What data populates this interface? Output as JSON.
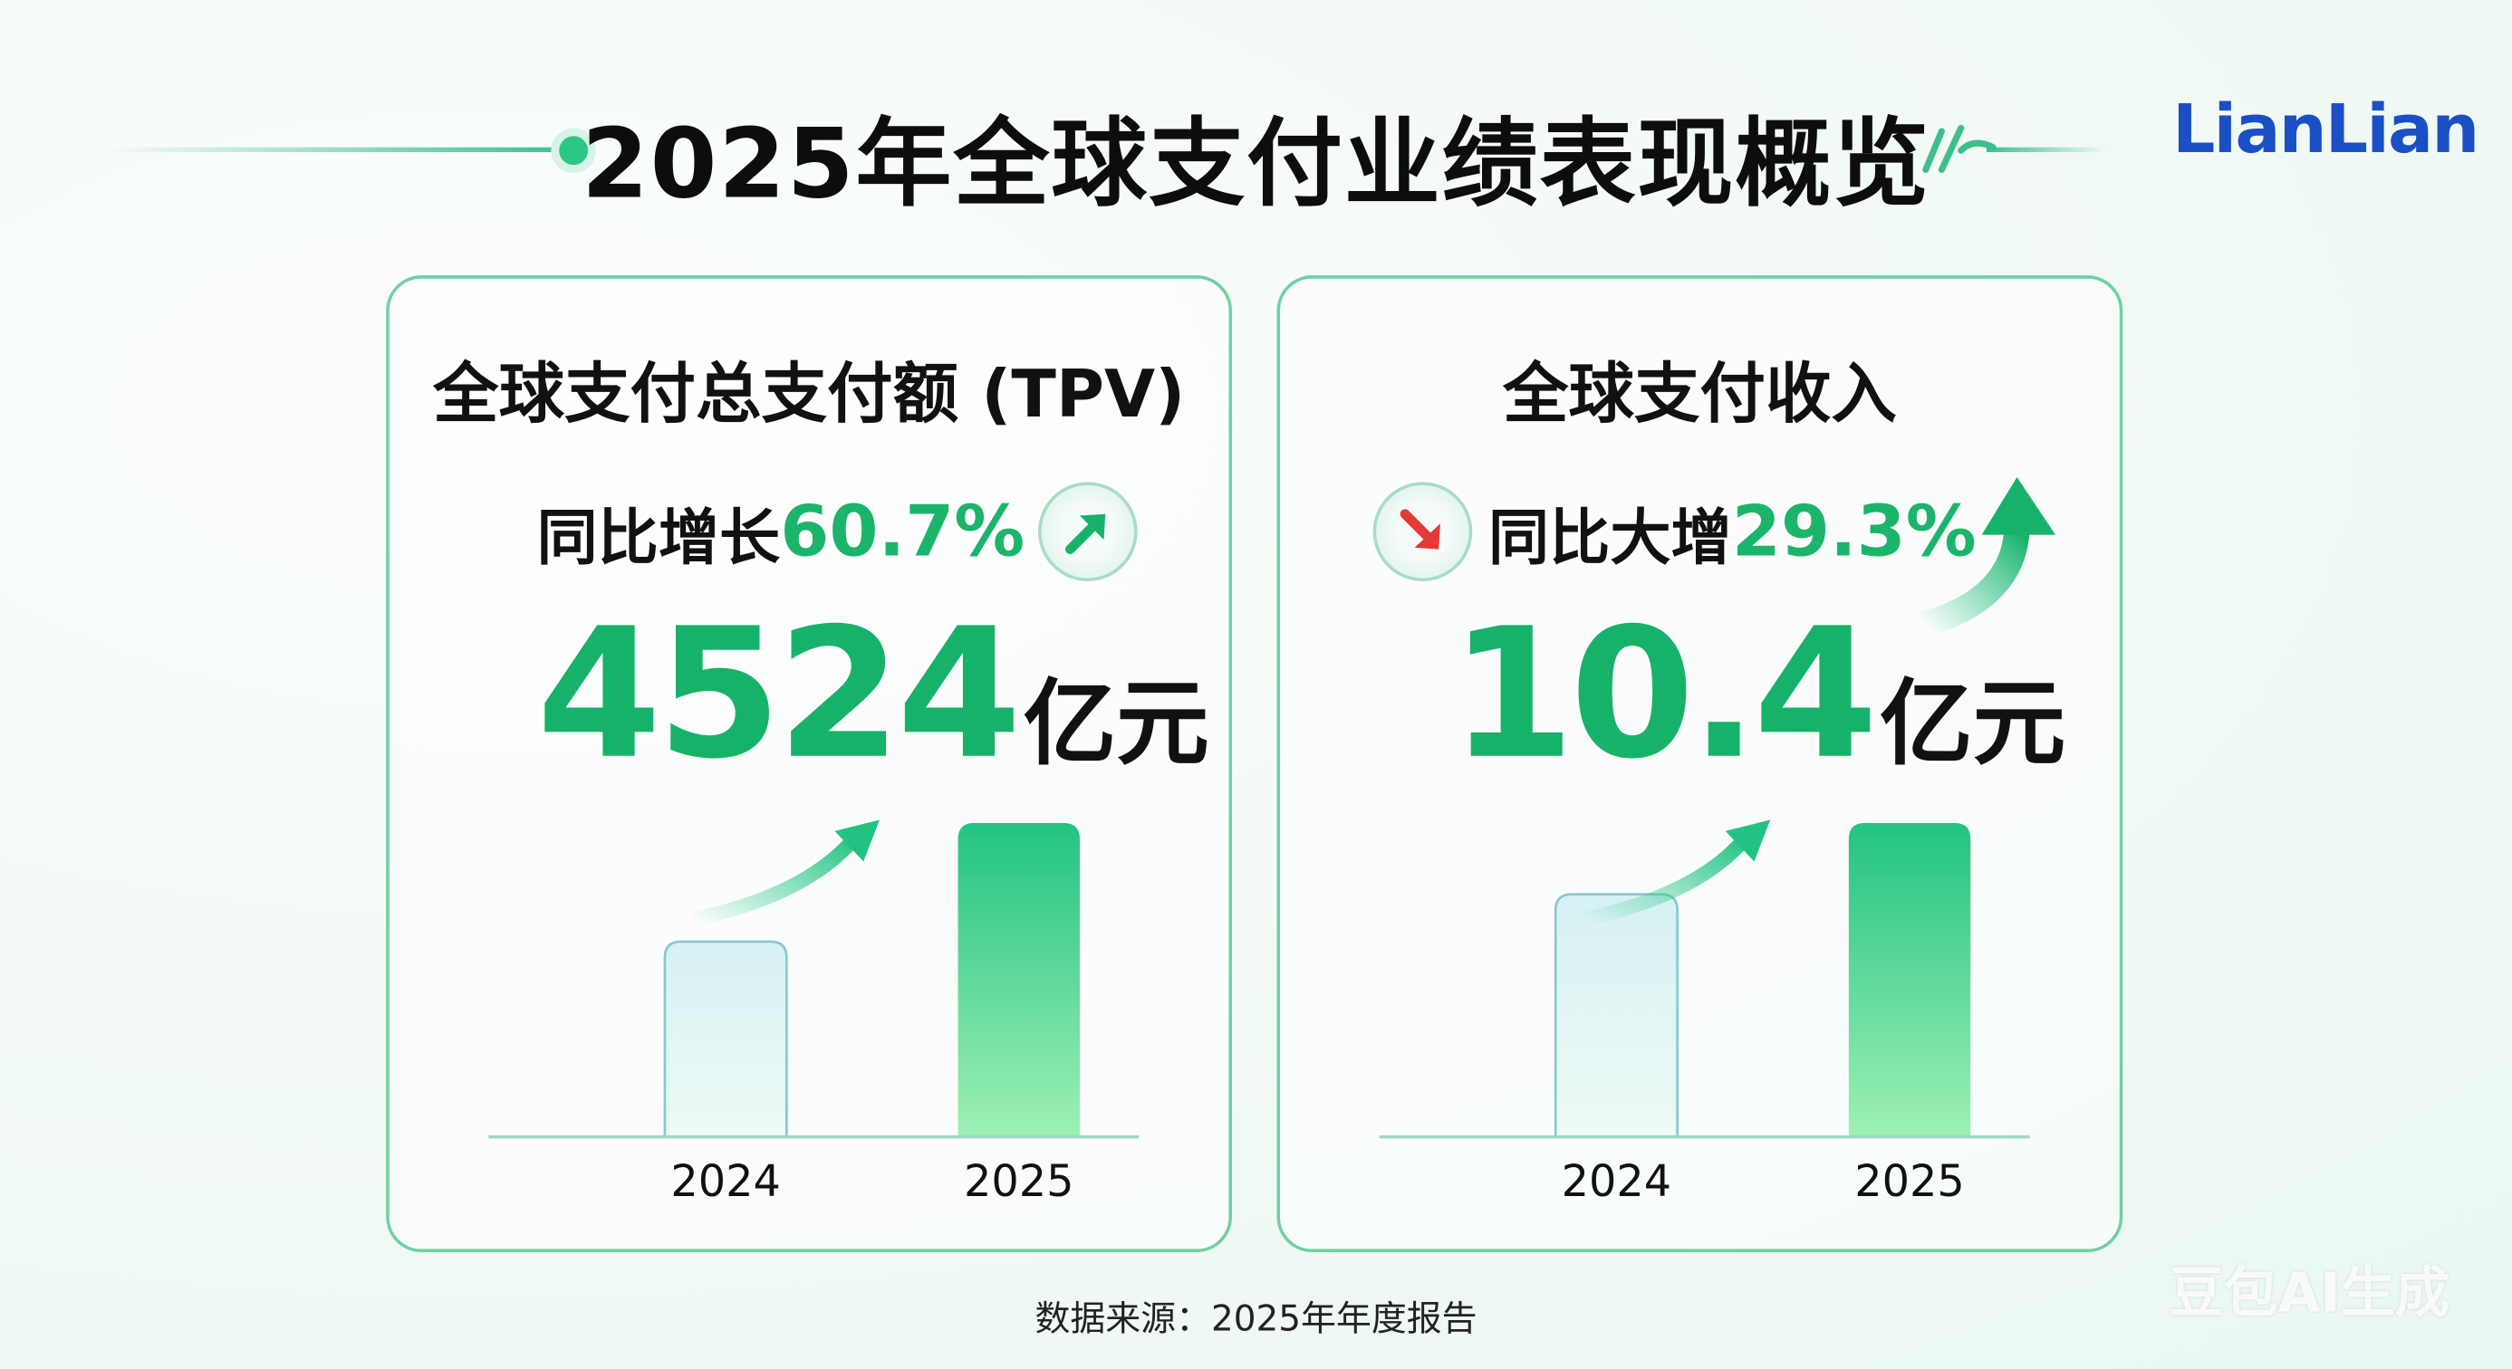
{
  "header": {
    "title": "2025年全球支付业绩表现概览",
    "logo": "LianLian"
  },
  "cards": [
    {
      "title": "全球支付总支付额 (TPV)",
      "growth_label": "同比增长",
      "growth_value": "60.7%",
      "growth_icon": "arrow-up-right-icon",
      "value": "4524",
      "unit": "亿元"
    },
    {
      "title": "全球支付收入",
      "growth_label": "同比大增",
      "growth_value": "29.3%",
      "growth_icon": "arrow-down-right-icon",
      "value": "10.4",
      "unit": "亿元"
    }
  ],
  "footer": {
    "source": "数据来源：2025年年度报告"
  },
  "watermark": "豆包AI生成",
  "colors": {
    "accent": "#17b26a",
    "logo": "#1b4fc6",
    "down_arrow": "#e53935",
    "border": "#6fd0a4"
  },
  "chart_data": [
    {
      "type": "bar",
      "title": "全球支付总支付额 (TPV)",
      "categories": [
        "2024",
        "2025"
      ],
      "values": [
        2815,
        4524
      ],
      "unit": "亿元",
      "growth_pct": 60.7
    },
    {
      "type": "bar",
      "title": "全球支付收入",
      "categories": [
        "2024",
        "2025"
      ],
      "values": [
        8.04,
        10.4
      ],
      "unit": "亿元",
      "growth_pct": 29.3
    }
  ]
}
